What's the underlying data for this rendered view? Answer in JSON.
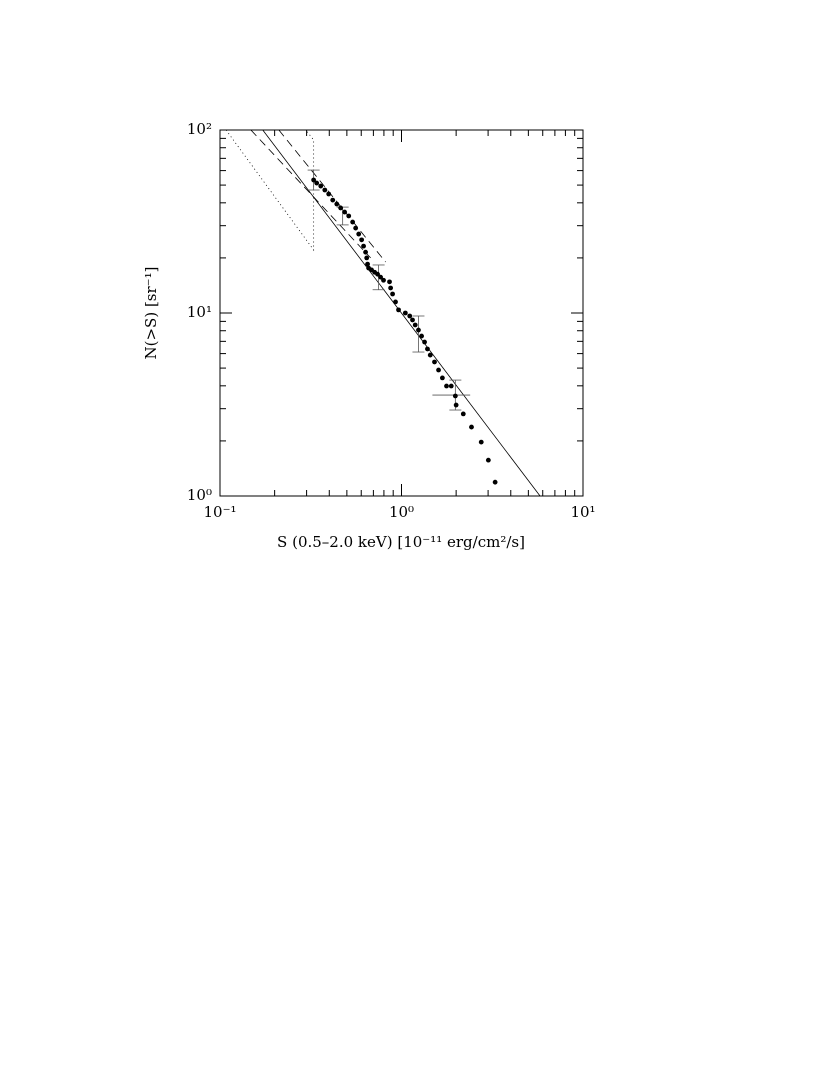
{
  "chart_data": {
    "type": "scatter",
    "xlabel": "S (0.5–2.0 keV) [10⁻¹¹ erg/cm²/s]",
    "ylabel": "N(>S) [sr⁻¹]",
    "log_x": true,
    "log_y": true,
    "xlim": [
      0.1,
      10
    ],
    "ylim": [
      1,
      100
    ],
    "xticks": [
      {
        "value": 0.1,
        "label": "10⁻¹"
      },
      {
        "value": 1,
        "label": "10⁰"
      },
      {
        "value": 10,
        "label": "10¹"
      }
    ],
    "yticks": [
      {
        "value": 1,
        "label": "10⁰"
      },
      {
        "value": 10,
        "label": "10¹"
      },
      {
        "value": 100,
        "label": "10²"
      }
    ],
    "x_minor_ticks": [
      0.2,
      0.3,
      0.4,
      0.5,
      0.6,
      0.7,
      0.8,
      0.9,
      2,
      3,
      4,
      5,
      6,
      7,
      8,
      9
    ],
    "y_minor_ticks": [
      2,
      3,
      4,
      5,
      6,
      7,
      8,
      9,
      20,
      30,
      40,
      50,
      60,
      70,
      80,
      90
    ],
    "color": "#000000",
    "x": [
      0.328,
      0.341,
      0.359,
      0.378,
      0.397,
      0.418,
      0.44,
      0.462,
      0.486,
      0.512,
      0.538,
      0.559,
      0.581,
      0.603,
      0.618,
      0.634,
      0.643,
      0.65,
      0.659,
      0.684,
      0.711,
      0.738,
      0.767,
      0.796,
      0.859,
      0.871,
      0.893,
      0.927,
      0.963,
      1.05,
      1.11,
      1.15,
      1.19,
      1.24,
      1.29,
      1.34,
      1.39,
      1.44,
      1.52,
      1.6,
      1.68,
      1.77,
      1.88,
      1.98,
      2.0,
      2.19,
      2.43,
      2.75,
      3.01,
      3.28
    ],
    "values": [
      53.3,
      51.3,
      49.4,
      47.0,
      44.7,
      41.4,
      39.4,
      37.5,
      35.6,
      33.9,
      31.4,
      29.1,
      27.0,
      25.1,
      23.2,
      21.5,
      20.0,
      18.5,
      17.6,
      17.2,
      16.7,
      16.3,
      15.7,
      15.1,
      14.8,
      13.7,
      12.7,
      11.5,
      10.4,
      10.0,
      9.63,
      9.16,
      8.6,
      8.07,
      7.48,
      6.94,
      6.36,
      5.89,
      5.4,
      4.88,
      4.42,
      3.99,
      3.99,
      3.52,
      3.14,
      2.81,
      2.38,
      1.97,
      1.57,
      1.19
    ],
    "lines": [
      {
        "style": "solid",
        "x": [
          0.172,
          5.8
        ],
        "y": [
          100,
          1
        ]
      },
      {
        "style": "dashed",
        "x": [
          0.148,
          0.676
        ],
        "y": [
          100,
          20.0
        ]
      },
      {
        "style": "dashed",
        "x": [
          0.211,
          0.817
        ],
        "y": [
          100,
          19.0
        ]
      },
      {
        "style": "dotted",
        "x": [
          0.108,
          0.328,
          0.328,
          0.297
        ],
        "y": [
          100,
          22.1,
          88.2,
          100
        ]
      }
    ],
    "error_bars": [
      {
        "x": 0.328,
        "y": 53.3,
        "y_low": 47.0,
        "y_high": 60.4
      },
      {
        "x": 0.474,
        "y": 34.3,
        "y_low": 30.3,
        "y_high": 37.9
      },
      {
        "x": 0.748,
        "y": 15.7,
        "y_low": 13.4,
        "y_high": 18.3
      },
      {
        "x": 1.24,
        "y": 8.07,
        "y_low": 6.12,
        "y_high": 9.63
      },
      {
        "x": 1.98,
        "y": 3.56,
        "y_low": 2.95,
        "y_high": 4.3,
        "x_low": 1.48,
        "x_high": 2.39
      }
    ]
  }
}
